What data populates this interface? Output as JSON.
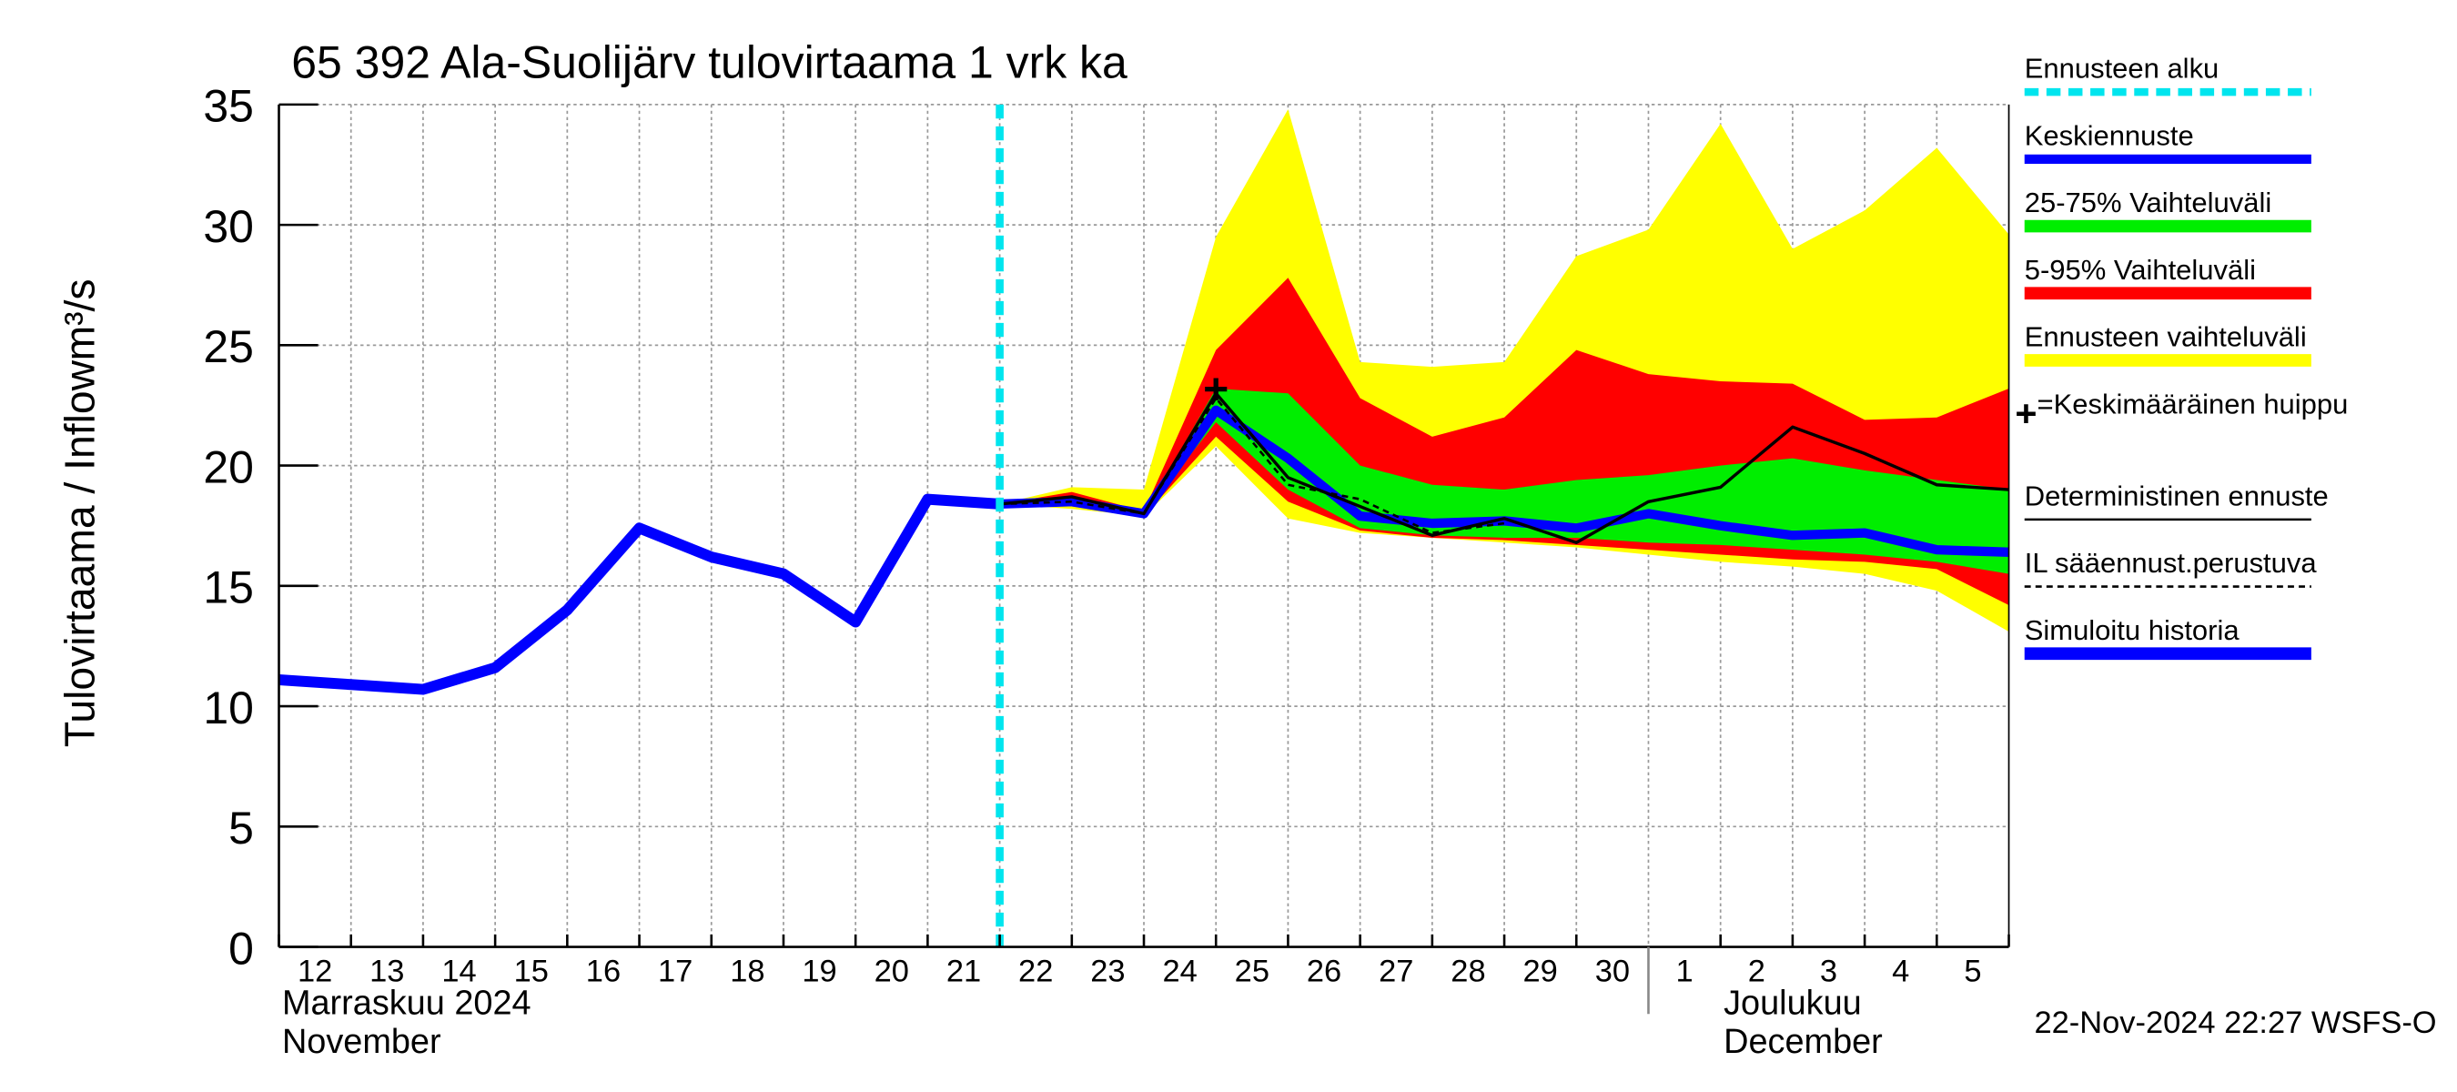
{
  "chart_data": {
    "type": "band-line",
    "title": "65 392 Ala-Suolijärv tulovirtaama 1 vrk ka",
    "y_label": "Tulovirtaama / Inflow",
    "y_unit": "m³/s",
    "x": [
      "2024-11-12",
      "2024-11-13",
      "2024-11-14",
      "2024-11-15",
      "2024-11-16",
      "2024-11-17",
      "2024-11-18",
      "2024-11-19",
      "2024-11-20",
      "2024-11-21",
      "2024-11-22",
      "2024-11-23",
      "2024-11-24",
      "2024-11-25",
      "2024-11-26",
      "2024-11-27",
      "2024-11-28",
      "2024-11-29",
      "2024-11-30",
      "2024-12-01",
      "2024-12-02",
      "2024-12-03",
      "2024-12-04",
      "2024-12-05",
      "2024-12-06"
    ],
    "xtick_labels": [
      "12",
      "13",
      "14",
      "15",
      "16",
      "17",
      "18",
      "19",
      "20",
      "21",
      "22",
      "23",
      "24",
      "25",
      "26",
      "27",
      "28",
      "29",
      "30",
      "1",
      "2",
      "3",
      "4",
      "5"
    ],
    "month_labels": [
      {
        "line1": "Marraskuu 2024",
        "line2": "November"
      },
      {
        "line1": "Joulukuu",
        "line2": "December"
      }
    ],
    "ylim": [
      0,
      35
    ],
    "yticks": [
      0,
      5,
      10,
      15,
      20,
      25,
      30,
      35
    ],
    "grid": true,
    "forecast_start": {
      "name": "Ennusteen alku",
      "color": "#00e5ee",
      "x": "2024-11-22"
    },
    "series": [
      {
        "name": "Ennusteen vaihteluväli",
        "color": "#ffff00",
        "kind": "band",
        "lower": [
          null,
          null,
          null,
          null,
          null,
          null,
          null,
          null,
          null,
          null,
          18.4,
          18.2,
          17.9,
          20.8,
          17.8,
          17.2,
          17.0,
          16.8,
          16.6,
          16.3,
          16.0,
          15.8,
          15.5,
          14.8,
          13.1
        ],
        "upper": [
          null,
          null,
          null,
          null,
          null,
          null,
          null,
          null,
          null,
          null,
          18.4,
          19.1,
          19.0,
          29.5,
          34.8,
          24.3,
          24.1,
          24.3,
          28.7,
          29.8,
          34.2,
          29.0,
          30.6,
          33.2,
          29.6
        ]
      },
      {
        "name": "5-95% Vaihteluväli",
        "color": "#ff0000",
        "kind": "band",
        "lower": [
          null,
          null,
          null,
          null,
          null,
          null,
          null,
          null,
          null,
          null,
          18.4,
          18.3,
          17.9,
          21.2,
          18.5,
          17.3,
          17.0,
          16.9,
          16.7,
          16.5,
          16.3,
          16.1,
          16.0,
          15.7,
          14.2
        ],
        "upper": [
          null,
          null,
          null,
          null,
          null,
          null,
          null,
          null,
          null,
          null,
          18.4,
          18.9,
          18.1,
          24.8,
          27.8,
          22.8,
          21.2,
          22.0,
          24.8,
          23.8,
          23.5,
          23.4,
          21.9,
          22.0,
          23.2
        ]
      },
      {
        "name": "25-75% Vaihteluväli",
        "color": "#00ee00",
        "kind": "band",
        "lower": [
          null,
          null,
          null,
          null,
          null,
          null,
          null,
          null,
          null,
          null,
          18.4,
          18.4,
          18.0,
          21.8,
          19.0,
          17.4,
          17.1,
          17.0,
          17.0,
          16.8,
          16.7,
          16.5,
          16.3,
          16.0,
          15.5
        ],
        "upper": [
          null,
          null,
          null,
          null,
          null,
          null,
          null,
          null,
          null,
          null,
          18.4,
          18.6,
          18.0,
          23.2,
          23.0,
          20.0,
          19.2,
          19.0,
          19.4,
          19.6,
          20.0,
          20.3,
          19.8,
          19.4,
          19.0
        ]
      },
      {
        "name": "Simuloitu historia",
        "color": "#0000ff",
        "kind": "line",
        "width": 7,
        "values": [
          11.1,
          10.9,
          10.7,
          11.6,
          14.0,
          17.4,
          16.2,
          15.5,
          13.5,
          18.6,
          18.4,
          null,
          null,
          null,
          null,
          null,
          null,
          null,
          null,
          null,
          null,
          null,
          null,
          null,
          null
        ]
      },
      {
        "name": "Keskiennuste",
        "color": "#0000ff",
        "kind": "line",
        "width": 6,
        "values": [
          null,
          null,
          null,
          null,
          null,
          null,
          null,
          null,
          null,
          null,
          18.4,
          18.5,
          18.0,
          22.3,
          20.3,
          17.9,
          17.6,
          17.7,
          17.4,
          18.0,
          17.5,
          17.1,
          17.2,
          16.5,
          16.4
        ]
      },
      {
        "name": "IL sääennust.perustuva",
        "color": "#000000",
        "kind": "line",
        "width": 1.5,
        "dash": "4 3",
        "values": [
          null,
          null,
          null,
          null,
          null,
          null,
          null,
          null,
          null,
          null,
          18.4,
          18.5,
          18.0,
          22.8,
          19.2,
          18.6,
          17.2,
          17.6,
          null,
          null,
          null,
          null,
          null,
          null,
          null
        ]
      },
      {
        "name": "Deterministinen ennuste",
        "color": "#000000",
        "kind": "line",
        "width": 2,
        "values": [
          null,
          null,
          null,
          null,
          null,
          null,
          null,
          null,
          null,
          null,
          18.4,
          18.7,
          18.0,
          23.0,
          19.5,
          18.3,
          17.1,
          17.8,
          16.8,
          18.5,
          19.1,
          21.6,
          20.5,
          19.2,
          19.0
        ]
      }
    ],
    "peak": {
      "name": "=Keskimääräinen huippu",
      "marker": "+",
      "x": "2024-11-25",
      "value": 23.2
    },
    "timestamp": "22-Nov-2024 22:27 WSFS-O"
  }
}
